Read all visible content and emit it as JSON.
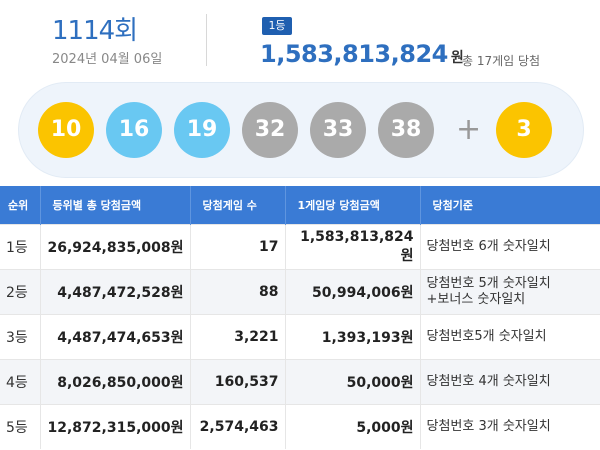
{
  "draw": {
    "round": "1114회",
    "date": "2024년 04월 06일",
    "rank_badge": "1등",
    "first_prize_amount": "1,583,813,824",
    "first_prize_unit": "원",
    "winners_note": "총 17게임 당첨"
  },
  "numbers": {
    "balls": [
      {
        "value": "10",
        "color": "#fbc400"
      },
      {
        "value": "16",
        "color": "#69c8f2"
      },
      {
        "value": "19",
        "color": "#69c8f2"
      },
      {
        "value": "32",
        "color": "#aaaaaa"
      },
      {
        "value": "33",
        "color": "#aaaaaa"
      },
      {
        "value": "38",
        "color": "#aaaaaa"
      }
    ],
    "plus": "+",
    "bonus": {
      "value": "3",
      "color": "#fbc400"
    }
  },
  "table": {
    "headers": [
      "순위",
      "등위별 총 당첨금액",
      "당첨게임 수",
      "1게임당 당첨금액",
      "당첨기준"
    ],
    "rows": [
      {
        "rank": "1등",
        "total": "26,924,835,008원",
        "games": "17",
        "per_game": "1,583,813,824원",
        "criteria": "당첨번호 6개 숫자일치",
        "criteria2": ""
      },
      {
        "rank": "2등",
        "total": "4,487,472,528원",
        "games": "88",
        "per_game": "50,994,006원",
        "criteria": "당첨번호 5개 숫자일치",
        "criteria2": "+보너스 숫자일치"
      },
      {
        "rank": "3등",
        "total": "4,487,474,653원",
        "games": "3,221",
        "per_game": "1,393,193원",
        "criteria": "당첨번호5개 숫자일치",
        "criteria2": ""
      },
      {
        "rank": "4등",
        "total": "8,026,850,000원",
        "games": "160,537",
        "per_game": "50,000원",
        "criteria": "당첨번호 4개 숫자일치",
        "criteria2": ""
      },
      {
        "rank": "5등",
        "total": "12,872,315,000원",
        "games": "2,574,463",
        "per_game": "5,000원",
        "criteria": "당첨번호 3개 숫자일치",
        "criteria2": ""
      }
    ]
  }
}
